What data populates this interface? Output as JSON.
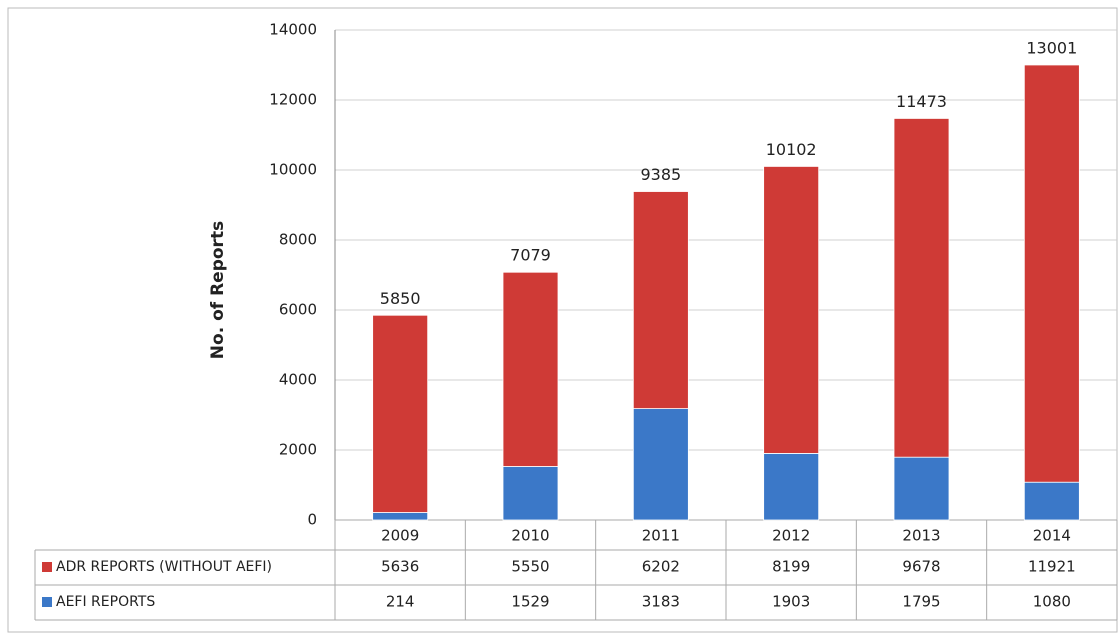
{
  "chart_data": {
    "type": "stacked_bar",
    "y_axis_label": "No. of Reports",
    "categories": [
      "2009",
      "2010",
      "2011",
      "2012",
      "2013",
      "2014"
    ],
    "series": [
      {
        "name": "ADR REPORTS (WITHOUT AEFI)",
        "color": "#cf3a36",
        "values": [
          5636,
          5550,
          6202,
          8199,
          9678,
          11921
        ]
      },
      {
        "name": "AEFI REPORTS",
        "color": "#3b78c8",
        "values": [
          214,
          1529,
          3183,
          1903,
          1795,
          1080
        ]
      }
    ],
    "totals": [
      5850,
      7079,
      9385,
      10102,
      11473,
      13001
    ],
    "ylim": [
      0,
      14000
    ],
    "yticks": [
      0,
      2000,
      4000,
      6000,
      8000,
      10000,
      12000,
      14000
    ],
    "grid": true
  }
}
